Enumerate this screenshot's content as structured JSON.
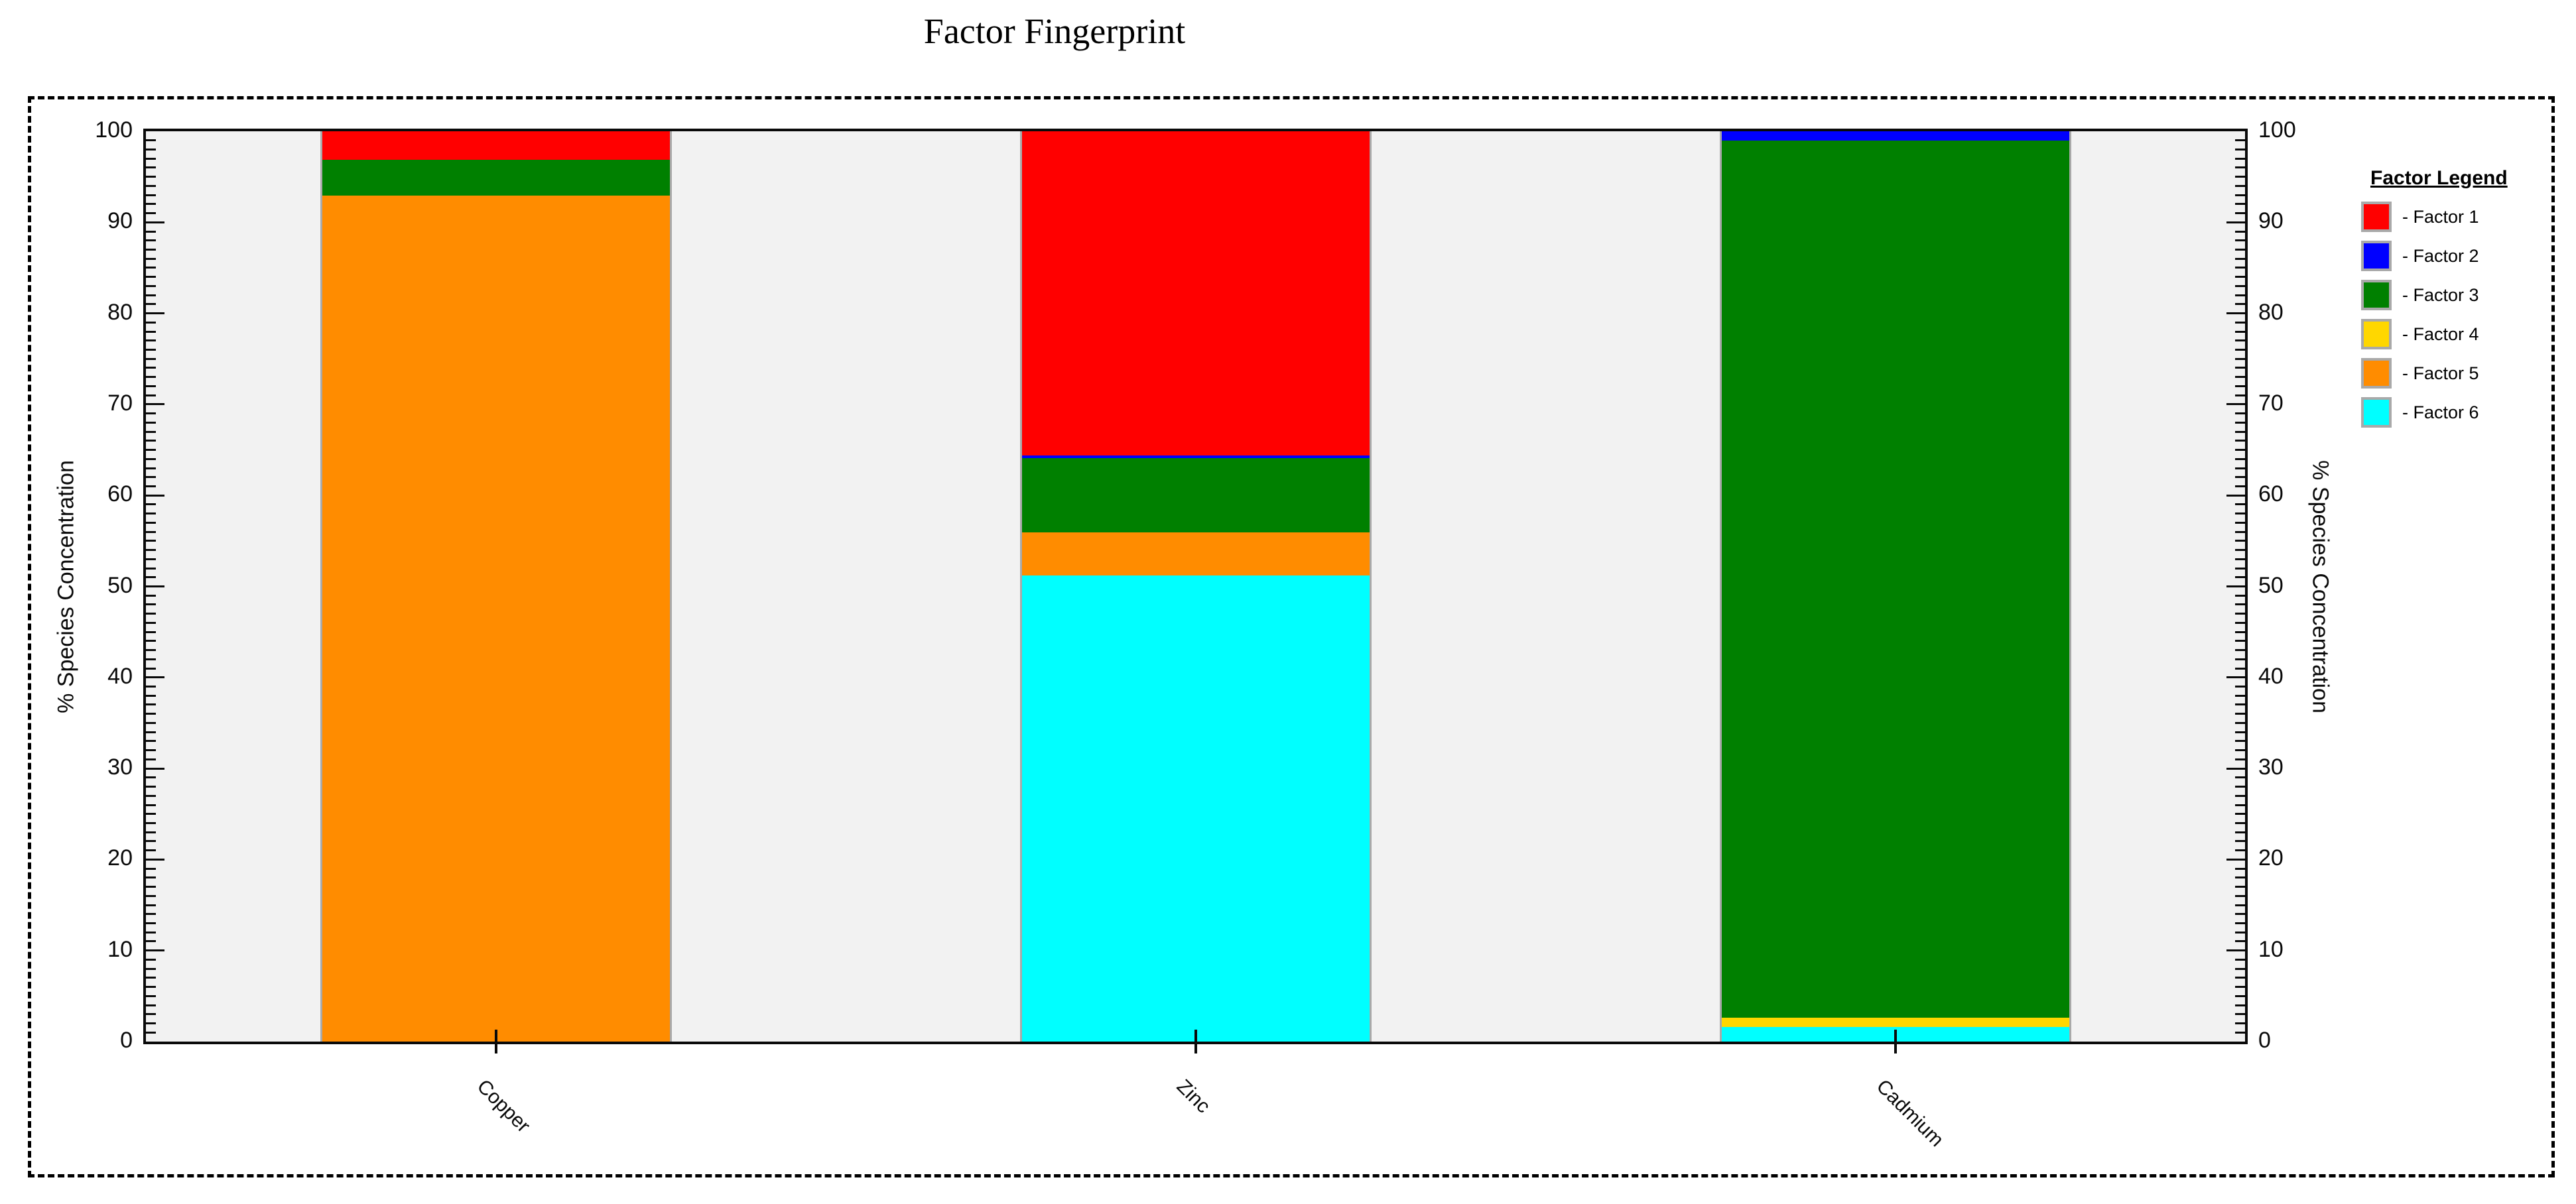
{
  "title": "Factor Fingerprint",
  "axes": {
    "ylabel_left": "% Species Concentration",
    "ylabel_right": "% Species Concentration",
    "ytick_labels": [
      "0",
      "10",
      "20",
      "30",
      "40",
      "50",
      "60",
      "70",
      "80",
      "90",
      "100"
    ]
  },
  "legend": {
    "title": "Factor Legend",
    "items": [
      {
        "label": "- Factor 1",
        "color": "#FF0000"
      },
      {
        "label": "- Factor 2",
        "color": "#0000FF"
      },
      {
        "label": "- Factor 3",
        "color": "#008000"
      },
      {
        "label": "- Factor 4",
        "color": "#FFD700"
      },
      {
        "label": "- Factor 5",
        "color": "#FF8C00"
      },
      {
        "label": "- Factor 6",
        "color": "#00FFFF"
      }
    ]
  },
  "chart_data": {
    "type": "bar",
    "stacked": true,
    "title": "Factor Fingerprint",
    "categories": [
      "Copper",
      "Zinc",
      "Cadmium"
    ],
    "series": [
      {
        "name": "Factor 1",
        "color": "#FF0000",
        "values": [
          3.1,
          35.6,
          0
        ]
      },
      {
        "name": "Factor 2",
        "color": "#0000FF",
        "values": [
          0,
          0.3,
          1.0
        ]
      },
      {
        "name": "Factor 3",
        "color": "#008000",
        "values": [
          4.0,
          8.2,
          96.4
        ]
      },
      {
        "name": "Factor 4",
        "color": "#FFD700",
        "values": [
          0,
          0,
          1.0
        ]
      },
      {
        "name": "Factor 5",
        "color": "#FF8C00",
        "values": [
          92.9,
          4.7,
          0
        ]
      },
      {
        "name": "Factor 6",
        "color": "#00FFFF",
        "values": [
          0,
          51.2,
          1.6
        ]
      }
    ],
    "stack_order_bottom_to_top": [
      "Factor 6",
      "Factor 5",
      "Factor 4",
      "Factor 3",
      "Factor 2",
      "Factor 1"
    ],
    "xlabel": "",
    "ylabel": "% Species Concentration",
    "ylim": [
      0,
      100
    ],
    "ytick_major_step": 10,
    "ytick_minor_step": 1,
    "grid": false,
    "legend_position": "right",
    "plot_background": "#f2f2f2",
    "bar_edge_color": "#a9a9a9"
  }
}
